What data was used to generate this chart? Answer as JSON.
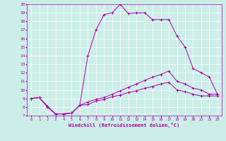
{
  "xlabel": "Windchill (Refroidissement éolien,°C)",
  "background_color": "#cceee8",
  "line_color": "#aa00aa",
  "xlim": [
    -0.5,
    23.5
  ],
  "ylim": [
    7,
    20
  ],
  "xticks": [
    0,
    1,
    2,
    3,
    4,
    5,
    6,
    7,
    8,
    9,
    10,
    11,
    12,
    13,
    14,
    15,
    16,
    17,
    18,
    19,
    20,
    21,
    22,
    23
  ],
  "yticks": [
    7,
    8,
    9,
    10,
    11,
    12,
    13,
    14,
    15,
    16,
    17,
    18,
    19,
    20
  ],
  "line1_x": [
    0,
    1,
    2,
    3,
    4,
    5,
    6,
    7,
    8,
    9,
    10,
    11,
    12,
    13,
    14,
    15,
    16,
    17,
    18,
    19,
    20,
    21,
    22,
    23
  ],
  "line1_y": [
    9.0,
    9.1,
    8.0,
    7.2,
    7.2,
    7.3,
    8.2,
    8.3,
    8.7,
    8.9,
    9.2,
    9.4,
    9.7,
    9.9,
    10.2,
    10.4,
    10.7,
    10.9,
    10.0,
    9.8,
    9.5,
    9.3,
    9.3,
    9.3
  ],
  "line2_x": [
    0,
    1,
    2,
    3,
    4,
    5,
    6,
    7,
    8,
    9,
    10,
    11,
    12,
    13,
    14,
    15,
    16,
    17,
    18,
    19,
    20,
    21,
    22,
    23
  ],
  "line2_y": [
    9.0,
    9.1,
    8.1,
    7.2,
    7.2,
    7.3,
    8.2,
    8.6,
    8.9,
    9.1,
    9.5,
    9.9,
    10.3,
    10.7,
    11.1,
    11.5,
    11.8,
    12.2,
    11.0,
    10.7,
    10.2,
    10.0,
    9.5,
    9.5
  ],
  "line3_x": [
    0,
    1,
    2,
    3,
    4,
    5,
    6,
    7,
    8,
    9,
    10,
    11,
    12,
    13,
    14,
    15,
    16,
    17,
    18,
    19,
    20,
    21,
    22,
    23
  ],
  "line3_y": [
    9.0,
    9.1,
    8.1,
    7.2,
    7.2,
    7.3,
    8.2,
    14.0,
    17.0,
    18.8,
    19.0,
    20.0,
    18.9,
    19.0,
    19.0,
    18.2,
    18.2,
    18.2,
    16.3,
    15.0,
    12.5,
    12.0,
    11.5,
    9.5
  ]
}
